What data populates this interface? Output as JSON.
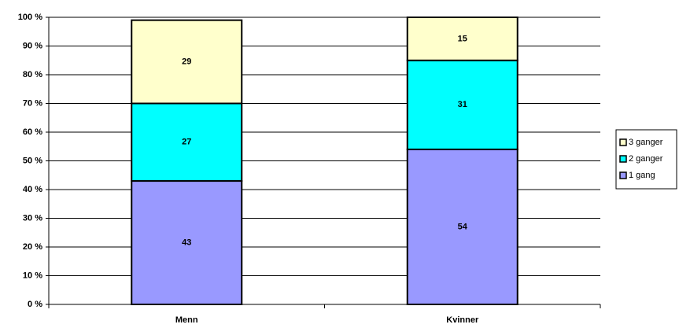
{
  "chart_data": {
    "type": "stacked_bar",
    "categories": [
      "Menn",
      "Kvinner"
    ],
    "series": [
      {
        "name": "1 gang",
        "color": "#9999ff",
        "values": [
          43,
          54
        ]
      },
      {
        "name": "2 ganger",
        "color": "#00ffff",
        "values": [
          27,
          31
        ]
      },
      {
        "name": "3 ganger",
        "color": "#ffffcc",
        "values": [
          29,
          15
        ]
      }
    ],
    "ylim": [
      0,
      100
    ],
    "yticks": [
      {
        "value": 0,
        "label": "0 %"
      },
      {
        "value": 10,
        "label": "10 %"
      },
      {
        "value": 20,
        "label": "20 %"
      },
      {
        "value": 30,
        "label": "30 %"
      },
      {
        "value": 40,
        "label": "40 %"
      },
      {
        "value": 50,
        "label": "50 %"
      },
      {
        "value": 60,
        "label": "60 %"
      },
      {
        "value": 70,
        "label": "70 %"
      },
      {
        "value": 80,
        "label": "80 %"
      },
      {
        "value": 90,
        "label": "90 %"
      },
      {
        "value": 100,
        "label": "100 %"
      }
    ],
    "grid": true,
    "legend": "right"
  }
}
